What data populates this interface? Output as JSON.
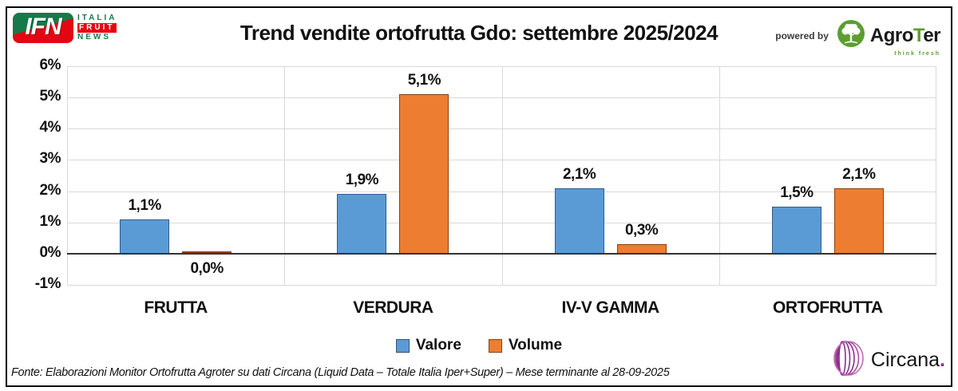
{
  "header": {
    "title": "Trend vendite ortofrutta Gdo: settembre 2025/2024",
    "powered_by": "powered by",
    "ifn_logo": {
      "abbr": "IFN",
      "line1": "ITALIA",
      "line2": "FRUIT",
      "line3": "NEWS",
      "green": "#157A4A",
      "red": "#E30613"
    },
    "agroter": {
      "part1": "Agro",
      "accent": "T",
      "part2": "er",
      "tagline": "think fresh",
      "green": "#5C9E31",
      "icon": "tree-in-circle"
    }
  },
  "chart_data": {
    "type": "bar",
    "title": "Trend vendite ortofrutta Gdo: settembre 2025/2024",
    "categories": [
      "FRUTTA",
      "VERDURA",
      "IV-V GAMMA",
      "ORTOFRUTTA"
    ],
    "series": [
      {
        "name": "Valore",
        "color": "#5B9BD5",
        "border": "#2E5C8A",
        "values": [
          1.1,
          1.9,
          2.1,
          1.5
        ],
        "labels": [
          "1,1%",
          "1,9%",
          "2,1%",
          "1,5%"
        ]
      },
      {
        "name": "Volume",
        "color": "#ED7D31",
        "border": "#8A4009",
        "values": [
          0.0,
          5.1,
          0.3,
          2.1
        ],
        "labels": [
          "0,0%",
          "5,1%",
          "0,3%",
          "2,1%"
        ]
      }
    ],
    "y_ticks": [
      "6%",
      "5%",
      "4%",
      "3%",
      "2%",
      "1%",
      "0%",
      "-1%"
    ],
    "ylim": [
      -1,
      6
    ],
    "grid": true,
    "gridline_color": "#D9D9D9",
    "axis_color": "#333333",
    "legend_position": "bottom"
  },
  "footer": {
    "source": "Fonte: Elaborazioni Monitor Ortofrutta Agroter su dati Circana (Liquid Data – Totale Italia Iper+Super) – Mese terminante al 28-09-2025"
  },
  "circana": {
    "name": "Circana",
    "dot": ".",
    "purple": "#8E2D8E"
  }
}
